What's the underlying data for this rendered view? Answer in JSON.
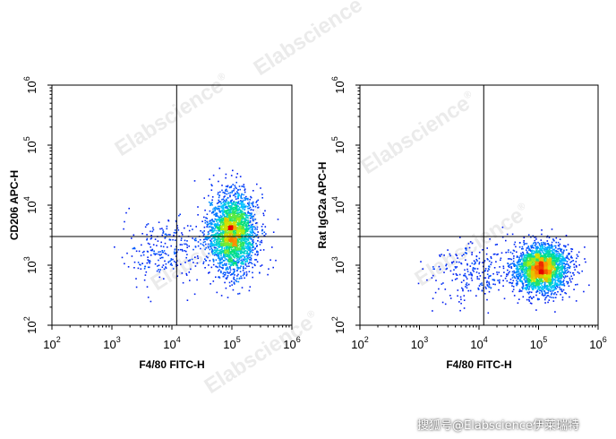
{
  "watermark": {
    "text": "Elabscience",
    "mark": "®"
  },
  "caption": "搜狐号@Elabscience伊莱瑞特",
  "chart_data": [
    {
      "type": "scatter",
      "style": "density-dot-plot",
      "xlabel": "F4/80 FITC-H",
      "ylabel": "CD206 APC-H",
      "xscale": "log",
      "yscale": "log",
      "xlim": [
        100,
        1000000
      ],
      "ylim": [
        100,
        1000000
      ],
      "x_ticks": [
        {
          "base": "10",
          "exp": "2"
        },
        {
          "base": "10",
          "exp": "3"
        },
        {
          "base": "10",
          "exp": "4"
        },
        {
          "base": "10",
          "exp": "5"
        },
        {
          "base": "10",
          "exp": "6"
        }
      ],
      "y_ticks": [
        {
          "base": "10",
          "exp": "2"
        },
        {
          "base": "10",
          "exp": "3"
        },
        {
          "base": "10",
          "exp": "4"
        },
        {
          "base": "10",
          "exp": "5"
        },
        {
          "base": "10",
          "exp": "6"
        }
      ],
      "gate_x": 12000,
      "gate_y": 3000,
      "population": {
        "center_x": 100000,
        "center_y": 3500,
        "spread_log_x": 0.2,
        "spread_log_y": 0.33
      },
      "tail": {
        "center_x": 8000,
        "center_y": 1800
      }
    },
    {
      "type": "scatter",
      "style": "density-dot-plot",
      "xlabel": "F4/80 FITC-H",
      "ylabel": "Rat IgG2a APC-H",
      "xscale": "log",
      "yscale": "log",
      "xlim": [
        100,
        1000000
      ],
      "ylim": [
        100,
        1000000
      ],
      "x_ticks": [
        {
          "base": "10",
          "exp": "2"
        },
        {
          "base": "10",
          "exp": "3"
        },
        {
          "base": "10",
          "exp": "4"
        },
        {
          "base": "10",
          "exp": "5"
        },
        {
          "base": "10",
          "exp": "6"
        }
      ],
      "y_ticks": [
        {
          "base": "10",
          "exp": "2"
        },
        {
          "base": "10",
          "exp": "3"
        },
        {
          "base": "10",
          "exp": "4"
        },
        {
          "base": "10",
          "exp": "5"
        },
        {
          "base": "10",
          "exp": "6"
        }
      ],
      "gate_x": 12000,
      "gate_y": 3000,
      "population": {
        "center_x": 110000,
        "center_y": 900,
        "spread_log_x": 0.22,
        "spread_log_y": 0.2
      },
      "tail": {
        "center_x": 8000,
        "center_y": 800
      }
    }
  ]
}
